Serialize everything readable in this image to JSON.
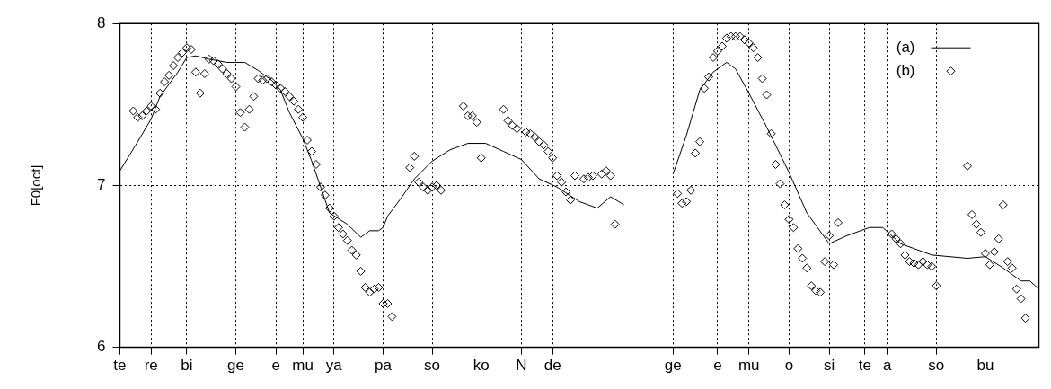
{
  "chart_data": {
    "type": "scatter",
    "ylabel": "F0[oct]",
    "ylim": [
      6,
      8
    ],
    "yticks": [
      6,
      7,
      8
    ],
    "grid": true,
    "legend": "top right",
    "categories": [
      "te",
      null,
      null,
      null,
      null,
      null,
      null,
      "re",
      null,
      null,
      null,
      null,
      null,
      null,
      null,
      "bi",
      null,
      null,
      null,
      null,
      null,
      null,
      null,
      null,
      null,
      null,
      "ge",
      null,
      null,
      null,
      null,
      null,
      null,
      null,
      null,
      "e",
      null,
      null,
      null,
      null,
      null,
      "mu",
      null,
      null,
      null,
      null,
      null,
      null,
      "ya",
      null,
      null,
      null,
      null,
      null,
      null,
      null,
      null,
      null,
      null,
      "pa",
      null,
      null,
      null,
      null,
      null,
      null,
      null,
      null,
      null,
      null,
      "so",
      null,
      null,
      null,
      null,
      null,
      null,
      null,
      null,
      null,
      null,
      "ko",
      null,
      null,
      null,
      null,
      null,
      null,
      null,
      null,
      "N",
      null,
      null,
      null,
      null,
      null,
      null,
      "de",
      null,
      null,
      null,
      null,
      null,
      null,
      null,
      null,
      null,
      null,
      null,
      null,
      null,
      null,
      null,
      null,
      null,
      null,
      null,
      null,
      null,
      null,
      null,
      null,
      null,
      null,
      "ge",
      null,
      null,
      null,
      null,
      null,
      null,
      null,
      null,
      null,
      "e",
      null,
      null,
      null,
      null,
      null,
      null,
      "mu",
      null,
      null,
      null,
      null,
      null,
      null,
      null,
      null,
      "o",
      null,
      null,
      null,
      null,
      null,
      null,
      null,
      null,
      "si",
      null,
      null,
      null,
      null,
      null,
      null,
      null,
      "te",
      null,
      null,
      null,
      null,
      "a",
      null,
      null,
      null,
      null,
      null,
      null,
      null,
      null,
      null,
      null,
      "so",
      null,
      null,
      null,
      null,
      null,
      null,
      null,
      null,
      null,
      null,
      "bu",
      null,
      null,
      null,
      null,
      null,
      null,
      null,
      null,
      null,
      null,
      null,
      null
    ],
    "series": [
      {
        "name": "(a)",
        "type": "line",
        "color": "#000000",
        "marker": "none",
        "line_style": "solid",
        "values": [
          7.09,
          null,
          7.18,
          null,
          7.27,
          null,
          null,
          7.41,
          null,
          7.55,
          null,
          null,
          null,
          7.7,
          null,
          7.79,
          null,
          7.8,
          null,
          null,
          7.78,
          null,
          null,
          null,
          7.76,
          null,
          null,
          null,
          7.76,
          null,
          null,
          7.71,
          null,
          null,
          7.65,
          null,
          7.59,
          null,
          7.45,
          null,
          null,
          7.29,
          null,
          7.15,
          null,
          6.99,
          null,
          6.83,
          null,
          null,
          null,
          6.76,
          null,
          null,
          6.68,
          null,
          6.72,
          null,
          6.72,
          6.74,
          6.81,
          null,
          null,
          6.92,
          null,
          null,
          7.04,
          null,
          null,
          null,
          7.15,
          null,
          null,
          null,
          7.22,
          null,
          null,
          null,
          7.26,
          null,
          null,
          null,
          7.26,
          null,
          null,
          null,
          7.21,
          null,
          null,
          null,
          7.16,
          null,
          null,
          null,
          7.04,
          null,
          null,
          null,
          6.99,
          null,
          null,
          null,
          null,
          6.9,
          null,
          null,
          null,
          6.86,
          null,
          null,
          6.93,
          null,
          null,
          6.88,
          null,
          null,
          null,
          null,
          null,
          null,
          null,
          null,
          null,
          null,
          null,
          null,
          null,
          null,
          null,
          null,
          null,
          null,
          null,
          null,
          null,
          null,
          null,
          null,
          null,
          null,
          null,
          null,
          null,
          null,
          null,
          null,
          null,
          null,
          null,
          null,
          null,
          null,
          null,
          null,
          null,
          null,
          null,
          null,
          null,
          null,
          null,
          null,
          null,
          null,
          null,
          null,
          null,
          null,
          null,
          null,
          null,
          null,
          null,
          null,
          null,
          null,
          null,
          null,
          null,
          null,
          null,
          null,
          null,
          null,
          null,
          null,
          null,
          null,
          null,
          null,
          null,
          null,
          null,
          null,
          null,
          null,
          null,
          null,
          null,
          null,
          null,
          null,
          null,
          null,
          null,
          null,
          null
        ]
      },
      {
        "type": "line",
        "color": "#000000",
        "marker": "none",
        "line_style": "solid",
        "values": [
          null,
          null,
          null,
          null,
          null,
          null,
          null,
          null,
          null,
          null,
          null,
          null,
          null,
          null,
          null,
          null,
          null,
          null,
          null,
          null,
          null,
          null,
          null,
          null,
          null,
          null,
          null,
          null,
          null,
          null,
          null,
          null,
          null,
          null,
          null,
          null,
          null,
          null,
          null,
          null,
          null,
          null,
          null,
          null,
          null,
          null,
          null,
          null,
          null,
          null,
          null,
          null,
          null,
          null,
          null,
          null,
          null,
          null,
          null,
          null,
          null,
          null,
          null,
          null,
          null,
          null,
          null,
          null,
          null,
          null,
          null,
          null,
          null,
          null,
          null,
          null,
          null,
          null,
          null,
          null,
          null,
          null,
          null,
          null,
          null,
          null,
          null,
          null,
          null,
          null,
          null,
          null,
          null,
          null,
          null,
          null,
          null,
          null,
          null,
          null,
          null,
          null,
          null,
          null,
          null,
          null,
          null,
          null,
          null,
          null,
          null,
          null,
          null,
          null,
          null,
          null,
          null,
          null,
          null,
          null,
          null,
          null,
          null,
          null,
          7.07,
          null,
          null,
          7.31,
          null,
          null,
          7.59,
          null,
          null,
          7.7,
          null,
          null,
          7.76,
          null,
          7.72,
          null,
          null,
          7.57,
          null,
          null,
          null,
          7.36,
          null,
          null,
          null,
          null,
          7.08,
          null,
          null,
          null,
          6.83,
          null,
          null,
          null,
          null,
          6.64,
          null,
          null,
          null,
          6.69,
          null,
          null,
          null,
          null,
          6.74,
          null,
          null,
          6.74,
          null,
          null,
          null,
          6.64,
          null,
          null,
          null,
          null,
          null,
          null,
          6.57,
          null,
          null,
          null,
          null,
          null,
          null,
          null,
          6.55,
          null,
          null,
          null,
          6.56,
          null,
          null,
          null,
          6.49,
          null,
          null,
          null,
          6.41,
          null,
          6.41,
          null,
          6.36
        ]
      },
      {
        "name": "(b)",
        "color": "#000000",
        "marker": "diamond",
        "values": [
          null,
          null,
          null,
          7.46,
          7.42,
          7.43,
          7.46,
          7.49,
          7.47,
          7.57,
          7.64,
          7.68,
          7.74,
          7.79,
          7.82,
          7.85,
          7.84,
          7.7,
          7.57,
          7.69,
          7.78,
          7.77,
          7.75,
          7.72,
          7.69,
          7.66,
          7.61,
          7.45,
          7.36,
          7.47,
          7.55,
          7.66,
          7.65,
          7.66,
          7.64,
          7.62,
          7.6,
          7.58,
          7.55,
          7.52,
          7.47,
          7.42,
          7.28,
          7.21,
          7.13,
          6.99,
          6.94,
          6.86,
          6.81,
          6.74,
          6.7,
          6.66,
          6.6,
          6.57,
          6.47,
          6.37,
          6.34,
          6.36,
          6.37,
          6.27,
          6.27,
          6.19,
          null,
          null,
          null,
          7.11,
          7.18,
          7.02,
          6.99,
          6.97,
          6.99,
          7.0,
          6.97,
          null,
          null,
          null,
          null,
          7.49,
          7.43,
          7.43,
          7.39,
          7.17,
          null,
          null,
          null,
          null,
          7.47,
          7.4,
          7.37,
          7.35,
          null,
          7.33,
          7.32,
          7.3,
          7.27,
          7.25,
          7.21,
          7.17,
          7.06,
          7.02,
          6.96,
          6.91,
          7.06,
          null,
          7.04,
          7.05,
          7.06,
          null,
          7.07,
          7.09,
          7.06,
          6.76,
          null,
          null,
          null,
          null,
          null,
          null,
          null,
          null,
          null,
          null,
          null,
          null,
          null,
          6.95,
          6.89,
          6.9,
          6.97,
          7.2,
          7.27,
          7.6,
          7.67,
          7.79,
          7.83,
          7.86,
          7.91,
          7.92,
          7.92,
          7.92,
          7.9,
          7.88,
          7.85,
          7.79,
          7.66,
          7.56,
          7.32,
          7.13,
          7.01,
          6.88,
          6.79,
          6.74,
          6.61,
          6.55,
          6.49,
          6.38,
          6.35,
          6.34,
          6.53,
          6.69,
          6.51,
          6.77,
          null,
          null,
          null,
          null,
          null,
          null,
          null,
          null,
          null,
          null,
          null,
          6.7,
          6.67,
          6.64,
          6.57,
          6.53,
          6.52,
          6.51,
          6.53,
          6.51,
          6.5,
          6.38,
          null,
          null,
          null,
          null,
          null,
          null,
          7.12,
          6.82,
          6.76,
          6.71,
          6.58,
          6.51,
          6.59,
          6.67,
          6.88,
          6.53,
          6.49,
          6.36,
          6.3,
          6.18,
          null,
          null,
          null
        ]
      }
    ]
  }
}
